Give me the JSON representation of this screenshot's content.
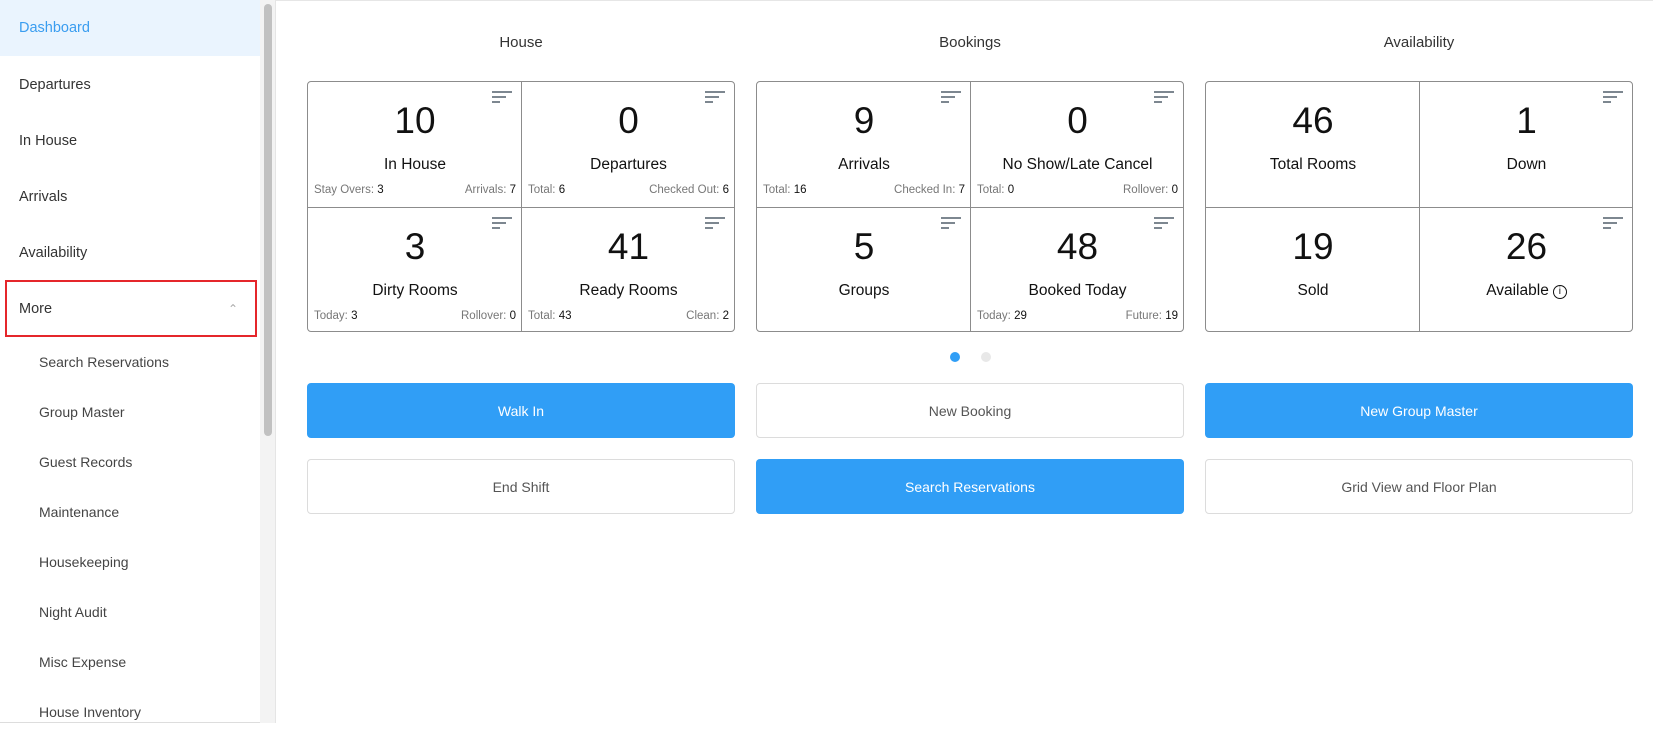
{
  "sidebar": {
    "items": [
      {
        "label": "Dashboard",
        "active": true
      },
      {
        "label": "Departures"
      },
      {
        "label": "In House"
      },
      {
        "label": "Arrivals"
      },
      {
        "label": "Availability"
      },
      {
        "label": "More",
        "expanded": true,
        "icon": "chevron-up-icon"
      }
    ],
    "sub_items": [
      "Search Reservations",
      "Group Master",
      "Guest Records",
      "Maintenance",
      "Housekeeping",
      "Night Audit",
      "Misc Expense",
      "House Inventory"
    ]
  },
  "sections": [
    {
      "title": "House",
      "cells": [
        {
          "value": "10",
          "label": "In House",
          "left_label": "Stay Overs:",
          "left_value": "3",
          "right_label": "Arrivals:",
          "right_value": "7"
        },
        {
          "value": "0",
          "label": "Departures",
          "left_label": "Total:",
          "left_value": "6",
          "right_label": "Checked Out:",
          "right_value": "6"
        },
        {
          "value": "3",
          "label": "Dirty Rooms",
          "left_label": "Today:",
          "left_value": "3",
          "right_label": "Rollover:",
          "right_value": "0"
        },
        {
          "value": "41",
          "label": "Ready Rooms",
          "left_label": "Total:",
          "left_value": "43",
          "right_label": "Clean:",
          "right_value": "2"
        }
      ]
    },
    {
      "title": "Bookings",
      "cells": [
        {
          "value": "9",
          "label": "Arrivals",
          "left_label": "Total:",
          "left_value": "16",
          "right_label": "Checked In:",
          "right_value": "7"
        },
        {
          "value": "0",
          "label": "No Show/Late Cancel",
          "left_label": "Total:",
          "left_value": "0",
          "right_label": "Rollover:",
          "right_value": "0"
        },
        {
          "value": "5",
          "label": "Groups"
        },
        {
          "value": "48",
          "label": "Booked Today",
          "left_label": "Today:",
          "left_value": "29",
          "right_label": "Future:",
          "right_value": "19"
        }
      ]
    },
    {
      "title": "Availability",
      "cells": [
        {
          "value": "46",
          "label": "Total Rooms"
        },
        {
          "value": "1",
          "label": "Down"
        },
        {
          "value": "19",
          "label": "Sold"
        },
        {
          "value": "26",
          "label": "Available",
          "info": "i"
        }
      ]
    }
  ],
  "pager": {
    "current": 1,
    "total": 2,
    "active_color": "#309ef6",
    "inactive_color": "#e8e8e8"
  },
  "buttons": {
    "walk_in": "Walk In",
    "new_booking": "New Booking",
    "new_group_master": "New Group Master",
    "end_shift": "End Shift",
    "search_reservations": "Search Reservations",
    "grid_view": "Grid View and Floor Plan"
  },
  "colors": {
    "accent": "#309ef6",
    "highlight": "#e5262b",
    "active_bg": "#eaf4fe"
  }
}
